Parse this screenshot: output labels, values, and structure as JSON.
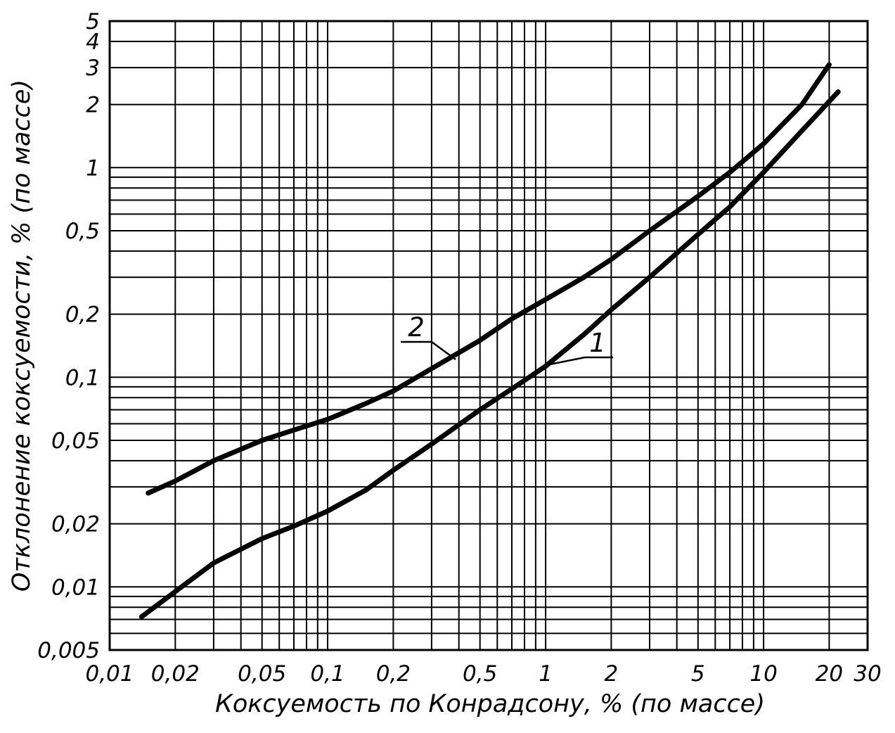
{
  "chart_data": {
    "type": "line",
    "title": "",
    "xlabel": "Коксуемость по Конрадсону, % (по массе)",
    "ylabel": "Отклонение коксуемости, % (по массе)",
    "x_scale": "log",
    "y_scale": "log",
    "xlim": [
      0.01,
      30
    ],
    "ylim": [
      0.005,
      5
    ],
    "grid": "full log-log grid, minor lines at every mantissa step, black on white",
    "legend_position": "inline curve callouts",
    "x_ticks": [
      {
        "value": 0.01,
        "label": "0,01"
      },
      {
        "value": 0.02,
        "label": "0,02"
      },
      {
        "value": 0.05,
        "label": "0,05"
      },
      {
        "value": 0.1,
        "label": "0,1"
      },
      {
        "value": 0.2,
        "label": "0,2"
      },
      {
        "value": 0.5,
        "label": "0,5"
      },
      {
        "value": 1,
        "label": "1"
      },
      {
        "value": 2,
        "label": "2"
      },
      {
        "value": 5,
        "label": "5"
      },
      {
        "value": 10,
        "label": "10"
      },
      {
        "value": 20,
        "label": "20"
      },
      {
        "value": 30,
        "label": "30"
      }
    ],
    "y_ticks": [
      {
        "value": 5,
        "label": "5"
      },
      {
        "value": 4,
        "label": "4"
      },
      {
        "value": 3,
        "label": "3"
      },
      {
        "value": 2,
        "label": "2"
      },
      {
        "value": 1,
        "label": "1"
      },
      {
        "value": 0.5,
        "label": "0,5"
      },
      {
        "value": 0.2,
        "label": "0,2"
      },
      {
        "value": 0.1,
        "label": "0,1"
      },
      {
        "value": 0.05,
        "label": "0,05"
      },
      {
        "value": 0.02,
        "label": "0,02"
      },
      {
        "value": 0.01,
        "label": "0,01"
      },
      {
        "value": 0.005,
        "label": "0,005"
      }
    ],
    "series": [
      {
        "name": "1",
        "x": [
          0.014,
          0.02,
          0.03,
          0.05,
          0.07,
          0.1,
          0.15,
          0.2,
          0.3,
          0.5,
          0.7,
          1,
          1.5,
          2,
          3,
          5,
          7,
          10,
          15,
          22
        ],
        "y": [
          0.0072,
          0.0095,
          0.013,
          0.017,
          0.0195,
          0.023,
          0.029,
          0.036,
          0.048,
          0.07,
          0.088,
          0.113,
          0.16,
          0.21,
          0.3,
          0.48,
          0.65,
          0.95,
          1.5,
          2.3
        ]
      },
      {
        "name": "2",
        "x": [
          0.015,
          0.02,
          0.03,
          0.05,
          0.07,
          0.1,
          0.15,
          0.2,
          0.3,
          0.5,
          0.7,
          1,
          1.5,
          2,
          3,
          5,
          7,
          10,
          15,
          20
        ],
        "y": [
          0.028,
          0.032,
          0.04,
          0.05,
          0.056,
          0.063,
          0.075,
          0.086,
          0.11,
          0.15,
          0.19,
          0.235,
          0.3,
          0.365,
          0.5,
          0.73,
          0.95,
          1.3,
          2.0,
          3.1
        ]
      }
    ],
    "colors": {
      "line": "#000000",
      "grid": "#000000",
      "background": "#ffffff",
      "text": "#000000"
    }
  }
}
